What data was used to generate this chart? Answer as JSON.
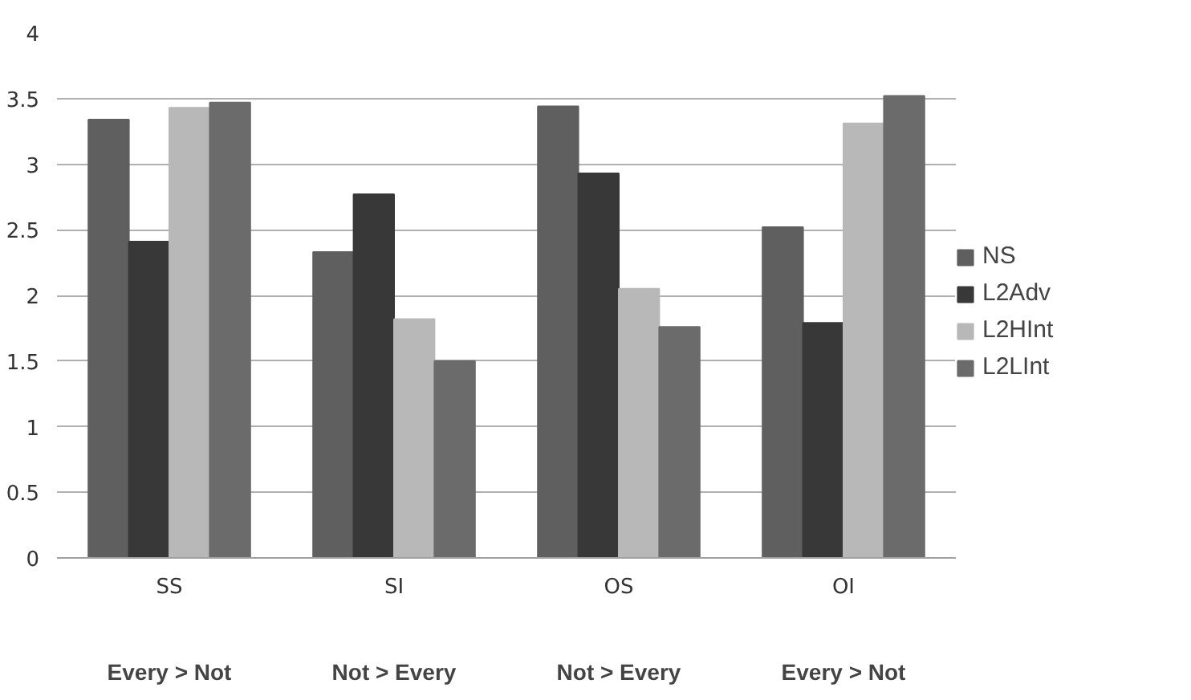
{
  "chart_data": {
    "type": "bar",
    "categories": [
      "SS",
      "SI",
      "OS",
      "OI"
    ],
    "series": [
      {
        "name": "NS",
        "color": "#5f5f5f",
        "values": [
          3.34,
          2.33,
          3.44,
          2.52
        ]
      },
      {
        "name": "L2Adv",
        "color": "#383838",
        "values": [
          2.41,
          2.77,
          2.93,
          1.79
        ]
      },
      {
        "name": "L2HInt",
        "color": "#b8b8b8",
        "values": [
          3.43,
          1.82,
          2.05,
          3.31
        ]
      },
      {
        "name": "L2LInt",
        "color": "#6b6b6b",
        "values": [
          3.47,
          1.5,
          1.76,
          3.52
        ]
      }
    ],
    "ylim": [
      0,
      4
    ],
    "yticks": [
      0,
      0.5,
      1,
      1.5,
      2,
      2.5,
      3,
      3.5,
      4
    ],
    "grid": "y",
    "legend": "right",
    "annotations": [
      "Every > Not",
      "Not > Every",
      "Not > Every",
      "Every > Not"
    ]
  }
}
